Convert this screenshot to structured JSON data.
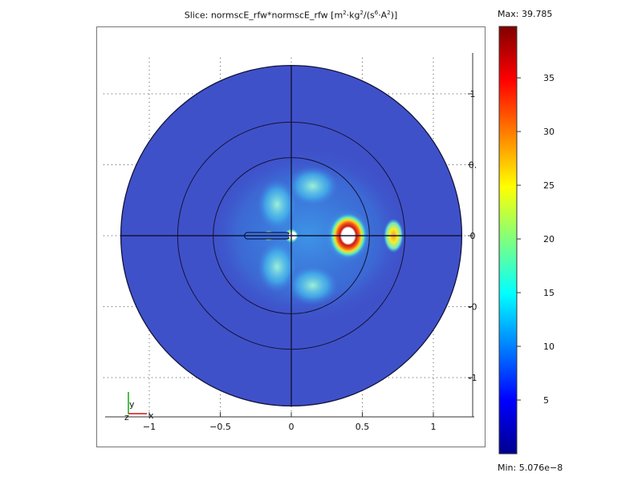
{
  "chart_data": {
    "type": "heatmap",
    "title_prefix": "Slice: normscE_rfw*normscE_rfw [m",
    "title_sup1": "2",
    "title_mid1": "·kg",
    "title_sup2": "2",
    "title_mid2": "/(s",
    "title_sup3": "6",
    "title_mid3": "·A",
    "title_sup4": "2",
    "title_suffix": ")]",
    "x_ticks": [
      {
        "value": -1,
        "label": "−1"
      },
      {
        "value": -0.5,
        "label": "−0.5"
      },
      {
        "value": 0,
        "label": "0"
      },
      {
        "value": 0.5,
        "label": "0.5"
      },
      {
        "value": 1,
        "label": "1"
      }
    ],
    "y_ticks": [
      {
        "value": 1,
        "label": "1"
      },
      {
        "value": 0.5,
        "label": "0."
      },
      {
        "value": 0,
        "label": "0"
      },
      {
        "value": -0.5,
        "label": "-0"
      },
      {
        "value": -1,
        "label": "-1"
      }
    ],
    "xlim": [
      -1.25,
      1.25
    ],
    "ylim": [
      -1.25,
      1.25
    ],
    "domain_radii": [
      1.2,
      0.8,
      0.55
    ],
    "grid": true,
    "colorbar": {
      "max_label": "Max: 39.785",
      "min_label": "Min: 5.076e−8",
      "ticks": [
        {
          "value": 35,
          "label": "35"
        },
        {
          "value": 30,
          "label": "30"
        },
        {
          "value": 25,
          "label": "25"
        },
        {
          "value": 20,
          "label": "20"
        },
        {
          "value": 15,
          "label": "15"
        },
        {
          "value": 10,
          "label": "10"
        },
        {
          "value": 5,
          "label": "5"
        }
      ],
      "min": 5.076e-08,
      "max": 39.785,
      "colormap": "jet"
    },
    "field_features": [
      {
        "name": "ring",
        "x": 0.4,
        "y": 0.0,
        "peak": 39.785
      },
      {
        "name": "side-lobe",
        "x": 0.72,
        "y": 0.0,
        "peak": 22
      },
      {
        "name": "feed-point",
        "x": 0.0,
        "y": 0.0,
        "peak": 25
      },
      {
        "name": "rod-end",
        "x": -0.16,
        "y": 0.0,
        "peak": 30
      }
    ],
    "background_value": 2
  },
  "axes_triad": {
    "x_label": "x",
    "y_label": "y",
    "z_label": "z"
  },
  "colors": {
    "domain_fill": "#3f51c9",
    "boundary": "#13133a",
    "axis_x": "#c11",
    "axis_y": "#1a1"
  }
}
